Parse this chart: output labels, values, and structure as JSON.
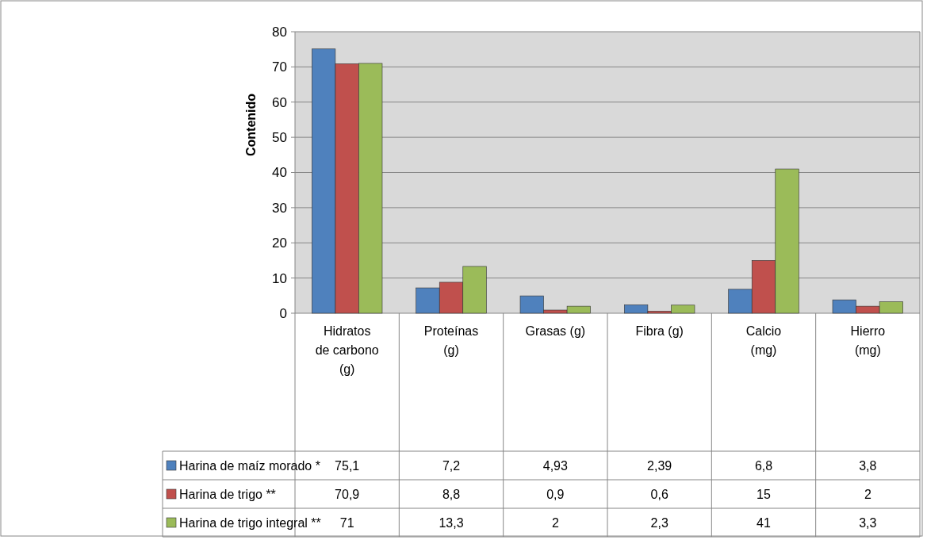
{
  "chart_data": {
    "type": "bar",
    "ylabel": "Contenido",
    "categories": [
      "Hidratos de carbono (g)",
      "Proteínas (g)",
      "Grasas (g)",
      "Fibra (g)",
      "Calcio (mg)",
      "Hierro (mg)"
    ],
    "series": [
      {
        "name": "Harina de maíz morado *",
        "color": "#4f81bd",
        "values": [
          75.1,
          7.2,
          4.93,
          2.39,
          6.8,
          3.8
        ],
        "value_labels": [
          "75,1",
          "7,2",
          "4,93",
          "2,39",
          "6,8",
          "3,8"
        ]
      },
      {
        "name": "Harina de trigo **",
        "color": "#c0504d",
        "values": [
          70.9,
          8.8,
          0.9,
          0.6,
          15,
          2
        ],
        "value_labels": [
          "70,9",
          "8,8",
          "0,9",
          "0,6",
          "15",
          "2"
        ]
      },
      {
        "name": "Harina de trigo integral **",
        "color": "#9bbb59",
        "values": [
          71,
          13.3,
          2,
          2.3,
          41,
          3.3
        ],
        "value_labels": [
          "71",
          "13,3",
          "2",
          "2,3",
          "41",
          "3,3"
        ]
      }
    ],
    "ylim": [
      0,
      80
    ],
    "yticks": [
      0,
      10,
      20,
      30,
      40,
      50,
      60,
      70,
      80
    ],
    "grid": "y",
    "legend": "bottom left"
  }
}
